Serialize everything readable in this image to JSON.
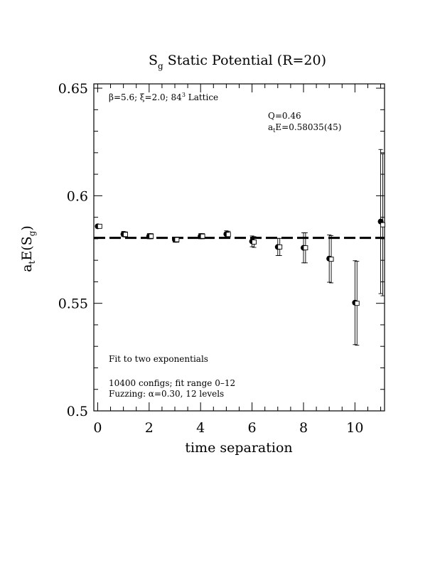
{
  "chart_data": {
    "type": "scatter",
    "title": "S_g Static Potential (R=20)",
    "title_parts": {
      "main": "S",
      "sub": "g",
      "rest": "Static Potential (R=20)"
    },
    "xlabel": "time separation",
    "ylabel_parts": {
      "a": "a",
      "t": "t",
      "e": "E(S",
      "g": "g",
      "close": ")"
    },
    "xlim": [
      -0.15,
      11.15
    ],
    "ylim": [
      0.5,
      0.652
    ],
    "x_ticks": [
      0,
      2,
      4,
      6,
      8,
      10
    ],
    "x_tick_labels": [
      "0",
      "2",
      "4",
      "6",
      "8",
      "10"
    ],
    "y_ticks": [
      0.5,
      0.55,
      0.6,
      0.65
    ],
    "y_tick_labels": [
      "0.5",
      "0.55",
      "0.6",
      "0.65"
    ],
    "fit_line": {
      "y": 0.5804,
      "style": "dashed"
    },
    "annotations": {
      "lattice_parts": {
        "beta": "β=5.6; ξ=2.0; 84",
        "sup": "3",
        "rest": " Lattice"
      },
      "q": "Q=0.46",
      "energy_parts": {
        "a": "a",
        "t": "t",
        "rest": "E=0.58035(45)"
      },
      "fit": "Fit to two exponentials",
      "configs": "10400 configs; fit range 0–12",
      "fuzzing": "Fuzzing: α=0.30, 12 levels"
    },
    "series": [
      {
        "marker": "filled-circle",
        "x": [
          0,
          1,
          2,
          3,
          4,
          5,
          6,
          7,
          8,
          9,
          10,
          11
        ],
        "y": [
          0.5858,
          0.5822,
          0.5812,
          0.5796,
          0.5812,
          0.5822,
          0.5788,
          0.5762,
          0.5758,
          0.5708,
          0.5503,
          0.588
        ],
        "err": [
          0.0008,
          0.0012,
          0.0012,
          0.0012,
          0.0012,
          0.0015,
          0.0025,
          0.004,
          0.007,
          0.011,
          0.0195,
          0.0335
        ]
      },
      {
        "marker": "open-square",
        "x": [
          0.08,
          1.08,
          2.08,
          3.08,
          4.08,
          5.08,
          6.08,
          7.08,
          8.08,
          9.08,
          10.08,
          11.08
        ],
        "y": [
          0.5858,
          0.582,
          0.5812,
          0.5796,
          0.5812,
          0.582,
          0.5785,
          0.5762,
          0.5758,
          0.5705,
          0.55,
          0.5865
        ],
        "err": [
          0.0008,
          0.0012,
          0.0012,
          0.0012,
          0.0012,
          0.0015,
          0.0025,
          0.004,
          0.007,
          0.011,
          0.0195,
          0.033
        ]
      }
    ]
  }
}
